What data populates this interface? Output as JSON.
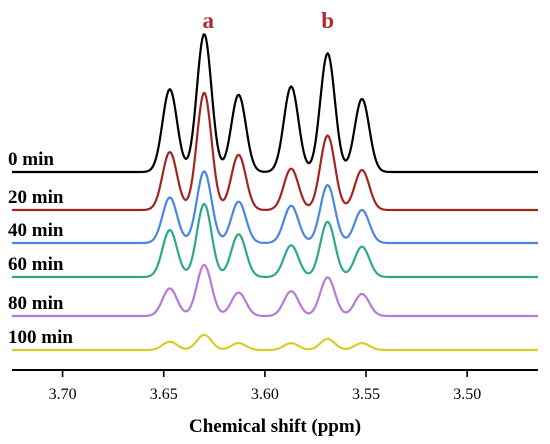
{
  "chart_data": {
    "type": "line",
    "xlabel": "Chemical shift (ppm)",
    "ylabel": "",
    "xlim": [
      3.725,
      3.465
    ],
    "x_reversed": true,
    "x_ticks": [
      "3.70",
      "3.65",
      "3.60",
      "3.55",
      "3.50"
    ],
    "x_tick_values": [
      3.7,
      3.65,
      3.6,
      3.55,
      3.5
    ],
    "annotations": [
      {
        "text": "a",
        "x": 3.628,
        "color": "#b3282d"
      },
      {
        "text": "b",
        "x": 3.569,
        "color": "#b3282d"
      }
    ],
    "peak_positions": [
      3.647,
      3.63,
      3.613,
      3.587,
      3.569,
      3.552
    ],
    "series": [
      {
        "name": "0 min",
        "color": "#000000",
        "peak_heights": [
          0.6,
          1.0,
          0.56,
          0.62,
          0.86,
          0.53
        ]
      },
      {
        "name": "20 min",
        "color": "#a3261e",
        "peak_heights": [
          0.42,
          0.85,
          0.4,
          0.3,
          0.54,
          0.29
        ]
      },
      {
        "name": "40 min",
        "color": "#4a86e0",
        "peak_heights": [
          0.33,
          0.52,
          0.3,
          0.27,
          0.42,
          0.24
        ]
      },
      {
        "name": "60 min",
        "color": "#2ea88c",
        "peak_heights": [
          0.34,
          0.53,
          0.31,
          0.23,
          0.4,
          0.22
        ]
      },
      {
        "name": "80 min",
        "color": "#b87ad6",
        "peak_heights": [
          0.2,
          0.37,
          0.17,
          0.18,
          0.28,
          0.16
        ]
      },
      {
        "name": "100 min",
        "color": "#d8cc2a",
        "peak_heights": [
          0.06,
          0.11,
          0.05,
          0.05,
          0.08,
          0.05
        ]
      }
    ]
  }
}
